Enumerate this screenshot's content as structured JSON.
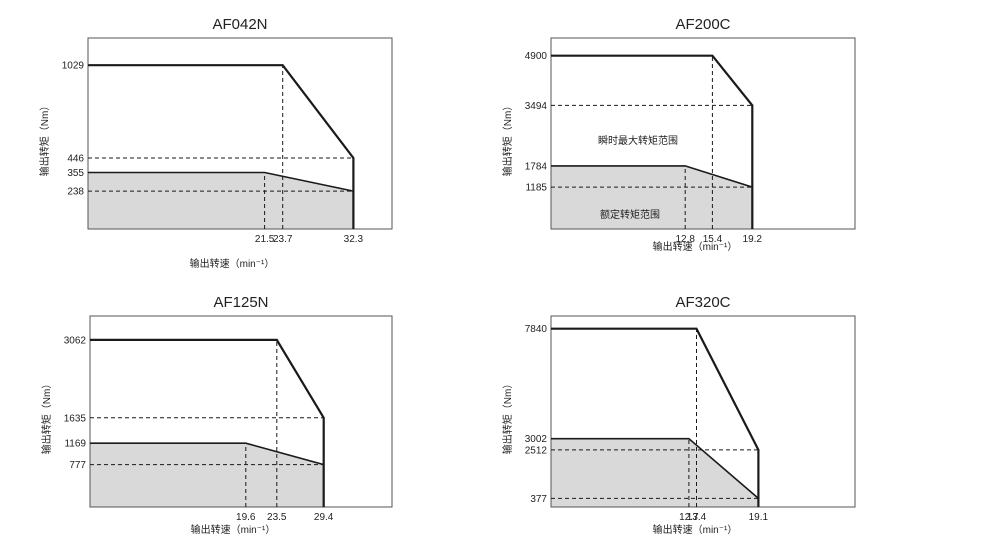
{
  "chart_data": [
    {
      "type": "line",
      "title": "AF042N",
      "xlabel": "输出转速（min⁻¹）",
      "ylabel": "输出转矩（Nm）",
      "xlim": [
        0,
        37
      ],
      "ylim": [
        0,
        1200
      ],
      "x_ticks": [
        "21.5",
        "23.7",
        "32.3"
      ],
      "y_ticks": [
        "1029",
        "446",
        "355",
        "238"
      ],
      "annotations": {
        "peak": "",
        "rated": ""
      },
      "series": [
        {
          "points": [
            [
              0,
              1029
            ],
            [
              23.7,
              1029
            ],
            [
              32.3,
              446
            ],
            [
              32.3,
              0
            ]
          ],
          "style": "solid-thick"
        },
        {
          "points": [
            [
              0,
              355
            ],
            [
              21.5,
              355
            ],
            [
              32.3,
              238
            ],
            [
              32.3,
              0
            ]
          ],
          "style": "solid",
          "filled": true
        },
        {
          "points": [
            [
              0,
              446
            ],
            [
              32.3,
              446
            ]
          ],
          "style": "dashed"
        },
        {
          "points": [
            [
              0,
              238
            ],
            [
              32.3,
              238
            ]
          ],
          "style": "dashed"
        },
        {
          "points": [
            [
              21.5,
              0
            ],
            [
              21.5,
              355
            ]
          ],
          "style": "dashed"
        },
        {
          "points": [
            [
              23.7,
              0
            ],
            [
              23.7,
              1029
            ]
          ],
          "style": "dashed"
        }
      ]
    },
    {
      "type": "line",
      "title": "AF200C",
      "xlabel": "输出转速（min⁻¹）",
      "ylabel": "输出转矩（Nm）",
      "xlim": [
        0,
        29
      ],
      "ylim": [
        0,
        5400
      ],
      "x_ticks": [
        "12.8",
        "15.4",
        "19.2"
      ],
      "y_ticks": [
        "4900",
        "3494",
        "1784",
        "1185"
      ],
      "annotations": {
        "peak": "瞬时最大转矩范围",
        "rated": "额定转矩范围"
      },
      "series": [
        {
          "points": [
            [
              0,
              4900
            ],
            [
              15.4,
              4900
            ],
            [
              19.2,
              3494
            ],
            [
              19.2,
              0
            ]
          ],
          "style": "solid-thick"
        },
        {
          "points": [
            [
              0,
              1784
            ],
            [
              12.8,
              1784
            ],
            [
              19.2,
              1185
            ],
            [
              19.2,
              0
            ]
          ],
          "style": "solid",
          "filled": true
        },
        {
          "points": [
            [
              0,
              3494
            ],
            [
              19.2,
              3494
            ]
          ],
          "style": "dashed"
        },
        {
          "points": [
            [
              0,
              1185
            ],
            [
              19.2,
              1185
            ]
          ],
          "style": "dashed"
        },
        {
          "points": [
            [
              12.8,
              0
            ],
            [
              12.8,
              1784
            ]
          ],
          "style": "dashed"
        },
        {
          "points": [
            [
              15.4,
              0
            ],
            [
              15.4,
              4900
            ]
          ],
          "style": "dashed"
        }
      ]
    },
    {
      "type": "line",
      "title": "AF125N",
      "xlabel": "输出转速（min⁻¹）",
      "ylabel": "输出转矩（Nm）",
      "xlim": [
        0,
        38
      ],
      "ylim": [
        0,
        3500
      ],
      "x_ticks": [
        "19.6",
        "23.5",
        "29.4"
      ],
      "y_ticks": [
        "3062",
        "1635",
        "1169",
        "777"
      ],
      "annotations": {
        "peak": "",
        "rated": ""
      },
      "series": [
        {
          "points": [
            [
              0,
              3062
            ],
            [
              23.5,
              3062
            ],
            [
              29.4,
              1635
            ],
            [
              29.4,
              0
            ]
          ],
          "style": "solid-thick"
        },
        {
          "points": [
            [
              0,
              1169
            ],
            [
              19.6,
              1169
            ],
            [
              29.4,
              777
            ],
            [
              29.4,
              0
            ]
          ],
          "style": "solid",
          "filled": true
        },
        {
          "points": [
            [
              0,
              1635
            ],
            [
              29.4,
              1635
            ]
          ],
          "style": "dashed"
        },
        {
          "points": [
            [
              0,
              777
            ],
            [
              29.4,
              777
            ]
          ],
          "style": "dashed"
        },
        {
          "points": [
            [
              19.6,
              0
            ],
            [
              19.6,
              1169
            ]
          ],
          "style": "dashed"
        },
        {
          "points": [
            [
              23.5,
              0
            ],
            [
              23.5,
              3062
            ]
          ],
          "style": "dashed"
        }
      ]
    },
    {
      "type": "line",
      "title": "AF320C",
      "xlabel": "输出转速（min⁻¹）",
      "ylabel": "输出转矩（Nm）",
      "xlim": [
        0,
        28
      ],
      "ylim": [
        0,
        8400
      ],
      "x_ticks": [
        "12.7",
        "13.4",
        "19.1"
      ],
      "y_ticks": [
        "7840",
        "3002",
        "2512",
        "377"
      ],
      "annotations": {
        "peak": "",
        "rated": ""
      },
      "series": [
        {
          "points": [
            [
              0,
              7840
            ],
            [
              13.4,
              7840
            ],
            [
              19.1,
              2512
            ],
            [
              19.1,
              0
            ]
          ],
          "style": "solid-thick"
        },
        {
          "points": [
            [
              0,
              3002
            ],
            [
              12.7,
              3002
            ],
            [
              19.1,
              377
            ],
            [
              19.1,
              0
            ]
          ],
          "style": "solid",
          "filled": true
        },
        {
          "points": [
            [
              0,
              2512
            ],
            [
              19.1,
              2512
            ]
          ],
          "style": "dashed"
        },
        {
          "points": [
            [
              0,
              377
            ],
            [
              19.1,
              377
            ]
          ],
          "style": "dashed"
        },
        {
          "points": [
            [
              12.7,
              0
            ],
            [
              12.7,
              3002
            ]
          ],
          "style": "dashed"
        },
        {
          "points": [
            [
              13.4,
              0
            ],
            [
              13.4,
              7840
            ]
          ],
          "style": "dashed"
        }
      ]
    }
  ],
  "colors": {
    "fill": "#d9d9d9",
    "line": "#1a1a1a",
    "frame": "#555555"
  }
}
